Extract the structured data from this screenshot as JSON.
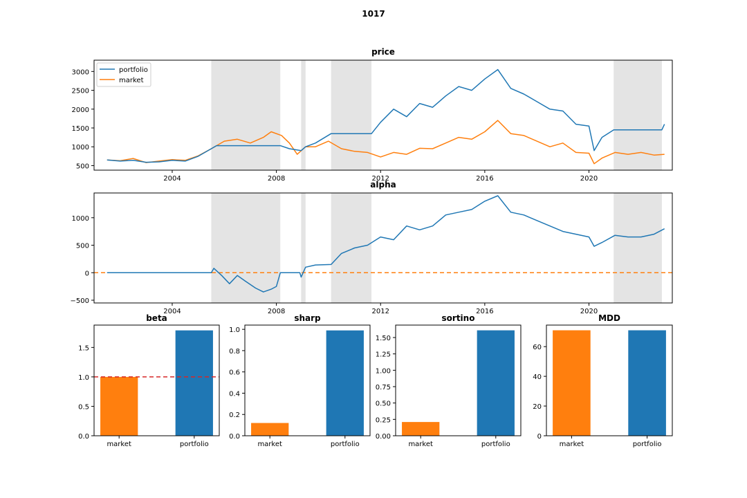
{
  "figure_title": "1017",
  "colors": {
    "portfolio": "#1f77b4",
    "market": "#ff7f0e",
    "shade": "#e4e4e4",
    "baseline_alpha": "#ff7f0e",
    "baseline_beta": "#d62728"
  },
  "chart_data": [
    {
      "type": "line",
      "title": "price",
      "xlim": [
        2001.0,
        2023.2
      ],
      "ylim": [
        380,
        3300
      ],
      "xticks": [
        2004,
        2008,
        2012,
        2016,
        2020
      ],
      "xtick_labels": [
        "2004",
        "2008",
        "2012",
        "2016",
        "2020"
      ],
      "yticks": [
        500,
        1000,
        1500,
        2000,
        2500,
        3000
      ],
      "ytick_labels": [
        "500",
        "1000",
        "1500",
        "2000",
        "2500",
        "3000"
      ],
      "legend": {
        "position": "top-left",
        "entries": [
          "portfolio",
          "market"
        ]
      },
      "shaded_regions": [
        [
          2005.5,
          2008.15
        ],
        [
          2008.95,
          2009.12
        ],
        [
          2010.1,
          2011.65
        ],
        [
          2020.95,
          2022.8
        ]
      ],
      "series": [
        {
          "name": "portfolio",
          "x": [
            2001.5,
            2002.0,
            2002.5,
            2003.0,
            2003.5,
            2004.0,
            2004.5,
            2005.0,
            2005.5,
            2005.7,
            2008.15,
            2008.5,
            2008.95,
            2009.12,
            2009.5,
            2010.1,
            2011.65,
            2012.0,
            2012.5,
            2013.0,
            2013.5,
            2014.0,
            2014.5,
            2015.0,
            2015.5,
            2016.0,
            2016.5,
            2017.0,
            2017.5,
            2018.0,
            2018.5,
            2019.0,
            2019.5,
            2020.0,
            2020.2,
            2020.5,
            2020.95,
            2022.8,
            2022.9
          ],
          "y": [
            650,
            620,
            640,
            590,
            600,
            640,
            620,
            750,
            950,
            1030,
            1030,
            950,
            900,
            1000,
            1100,
            1350,
            1350,
            1650,
            2000,
            1800,
            2150,
            2050,
            2350,
            2600,
            2500,
            2800,
            3050,
            2550,
            2400,
            2200,
            2000,
            1950,
            1600,
            1550,
            900,
            1250,
            1450,
            1450,
            1600
          ]
        },
        {
          "name": "market",
          "x": [
            2001.5,
            2002.0,
            2002.5,
            2003.0,
            2003.5,
            2004.0,
            2004.5,
            2005.0,
            2005.5,
            2006.0,
            2006.5,
            2007.0,
            2007.5,
            2007.8,
            2008.2,
            2008.5,
            2008.8,
            2009.12,
            2009.5,
            2010.0,
            2010.5,
            2011.0,
            2011.5,
            2012.0,
            2012.5,
            2013.0,
            2013.5,
            2014.0,
            2014.5,
            2015.0,
            2015.5,
            2016.0,
            2016.5,
            2017.0,
            2017.5,
            2018.0,
            2018.5,
            2019.0,
            2019.5,
            2020.0,
            2020.2,
            2020.5,
            2021.0,
            2021.5,
            2022.0,
            2022.5,
            2022.9
          ],
          "y": [
            650,
            630,
            690,
            580,
            620,
            660,
            640,
            760,
            950,
            1150,
            1200,
            1100,
            1250,
            1400,
            1300,
            1100,
            800,
            1000,
            1000,
            1150,
            950,
            880,
            850,
            730,
            850,
            800,
            960,
            950,
            1100,
            1250,
            1200,
            1400,
            1700,
            1350,
            1300,
            1150,
            1000,
            1100,
            850,
            830,
            550,
            700,
            850,
            800,
            850,
            780,
            800
          ]
        }
      ]
    },
    {
      "type": "line",
      "title": "alpha",
      "xlim": [
        2001.0,
        2023.2
      ],
      "ylim": [
        -550,
        1450
      ],
      "xticks": [
        2004,
        2008,
        2012,
        2016,
        2020
      ],
      "xtick_labels": [
        "2004",
        "2008",
        "2012",
        "2016",
        "2020"
      ],
      "yticks": [
        -500,
        0,
        500,
        1000
      ],
      "ytick_labels": [
        "−500",
        "0",
        "500",
        "1000"
      ],
      "baseline": 0,
      "shaded_regions": [
        [
          2005.5,
          2008.15
        ],
        [
          2008.95,
          2009.12
        ],
        [
          2010.1,
          2011.65
        ],
        [
          2020.95,
          2022.8
        ]
      ],
      "series": [
        {
          "name": "alpha",
          "x": [
            2001.5,
            2003.0,
            2005.5,
            2005.6,
            2005.9,
            2006.2,
            2006.5,
            2006.8,
            2007.2,
            2007.5,
            2007.8,
            2008.0,
            2008.15,
            2008.9,
            2008.95,
            2009.12,
            2009.5,
            2010.1,
            2010.5,
            2011.0,
            2011.5,
            2012.0,
            2012.5,
            2013.0,
            2013.5,
            2014.0,
            2014.5,
            2015.0,
            2015.5,
            2016.0,
            2016.5,
            2017.0,
            2017.5,
            2018.0,
            2018.5,
            2019.0,
            2019.5,
            2020.0,
            2020.2,
            2020.5,
            2021.0,
            2021.5,
            2022.0,
            2022.5,
            2022.9
          ],
          "y": [
            0,
            0,
            0,
            80,
            -50,
            -200,
            -50,
            -150,
            -280,
            -350,
            -300,
            -250,
            0,
            0,
            -80,
            100,
            140,
            150,
            350,
            450,
            500,
            650,
            600,
            850,
            780,
            850,
            1050,
            1100,
            1150,
            1300,
            1400,
            1100,
            1050,
            950,
            850,
            750,
            700,
            650,
            480,
            550,
            680,
            650,
            650,
            700,
            800
          ]
        }
      ]
    },
    {
      "type": "bar",
      "title": "beta",
      "categories": [
        "market",
        "portfolio"
      ],
      "values": [
        1.0,
        1.79
      ],
      "ylim": [
        0,
        1.88
      ],
      "yticks": [
        0.0,
        0.5,
        1.0,
        1.5
      ],
      "ytick_labels": [
        "0.0",
        "0.5",
        "1.0",
        "1.5"
      ],
      "baseline": 1.0
    },
    {
      "type": "bar",
      "title": "sharp",
      "categories": [
        "market",
        "portfolio"
      ],
      "values": [
        0.12,
        0.99
      ],
      "ylim": [
        0,
        1.04
      ],
      "yticks": [
        0.0,
        0.2,
        0.4,
        0.6,
        0.8,
        1.0
      ],
      "ytick_labels": [
        "0.0",
        "0.2",
        "0.4",
        "0.6",
        "0.8",
        "1.0"
      ]
    },
    {
      "type": "bar",
      "title": "sortino",
      "categories": [
        "market",
        "portfolio"
      ],
      "values": [
        0.21,
        1.61
      ],
      "ylim": [
        0,
        1.69
      ],
      "yticks": [
        0.0,
        0.25,
        0.5,
        0.75,
        1.0,
        1.25,
        1.5
      ],
      "ytick_labels": [
        "0.00",
        "0.25",
        "0.50",
        "0.75",
        "1.00",
        "1.25",
        "1.50"
      ]
    },
    {
      "type": "bar",
      "title": "MDD",
      "categories": [
        "market",
        "portfolio"
      ],
      "values": [
        71,
        71
      ],
      "ylim": [
        0,
        74.5
      ],
      "yticks": [
        0,
        20,
        40,
        60
      ],
      "ytick_labels": [
        "0",
        "20",
        "40",
        "60"
      ]
    }
  ]
}
